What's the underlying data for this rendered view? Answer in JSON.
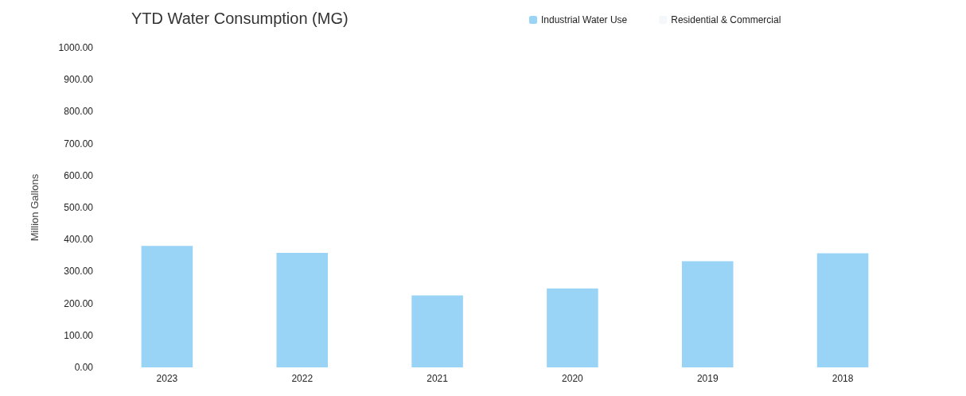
{
  "chart_data": {
    "type": "bar",
    "title": "YTD Water Consumption (MG)",
    "ylabel": "Million Gallons",
    "categories": [
      "2023",
      "2022",
      "2021",
      "2020",
      "2019",
      "2018"
    ],
    "series": [
      {
        "name": "Industrial Water Use",
        "color": "#99d3f5",
        "values": [
          380,
          358,
          225,
          247,
          332,
          357
        ]
      },
      {
        "name": "Residential & Commercial",
        "color": "#f4f8fb",
        "values": [
          null,
          null,
          null,
          null,
          null,
          null
        ]
      }
    ],
    "stacked": true,
    "ylim": [
      0,
      1000
    ],
    "yticks": [
      {
        "value": 0,
        "label": "0.00"
      },
      {
        "value": 100,
        "label": "100.00"
      },
      {
        "value": 200,
        "label": "200.00"
      },
      {
        "value": 300,
        "label": "300.00"
      },
      {
        "value": 400,
        "label": "400.00"
      },
      {
        "value": 500,
        "label": "500.00"
      },
      {
        "value": 600,
        "label": "600.00"
      },
      {
        "value": 700,
        "label": "700.00"
      },
      {
        "value": 800,
        "label": "800.00"
      },
      {
        "value": 900,
        "label": "900.00"
      },
      {
        "value": 1000,
        "label": "1000.00"
      }
    ],
    "grid": false,
    "legend": "top right"
  }
}
